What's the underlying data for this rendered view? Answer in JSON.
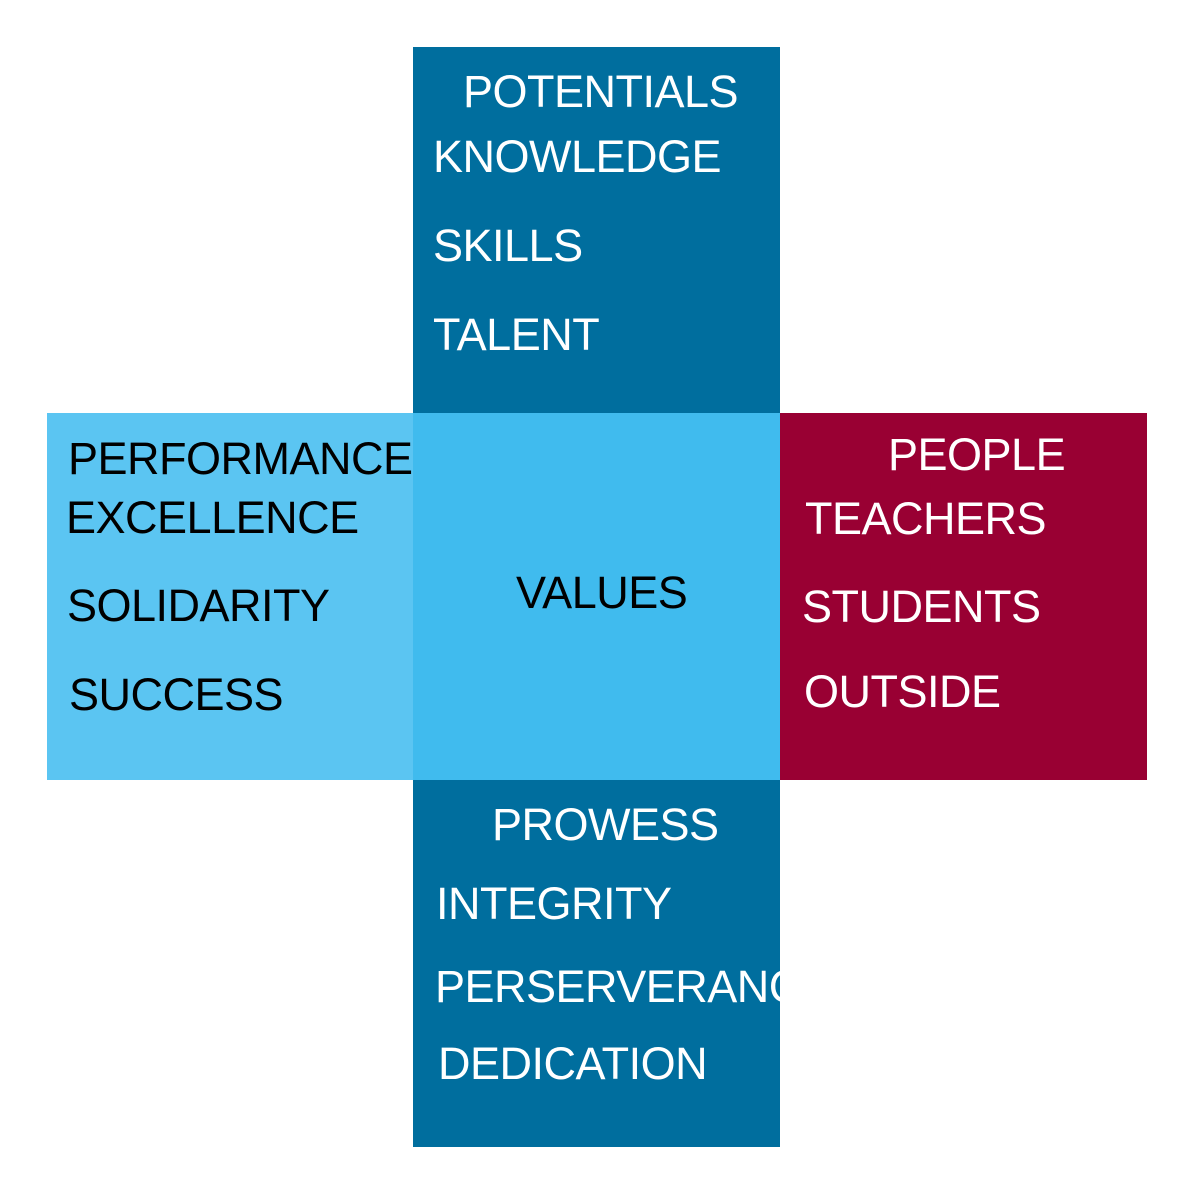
{
  "colors": {
    "top": "#006E9E",
    "bottom": "#006E9E",
    "left": "#5BC5F2",
    "center": "#40BBEE",
    "right": "#990033",
    "light_text": "#ffffff",
    "dark_text": "#000000"
  },
  "top": {
    "title": "POTENTIALS",
    "items": [
      "KNOWLEDGE",
      "SKILLS",
      "TALENT"
    ]
  },
  "left": {
    "title": "PERFORMANCE",
    "items": [
      "EXCELLENCE",
      "SOLIDARITY",
      "SUCCESS"
    ]
  },
  "center": {
    "title": "VALUES"
  },
  "right": {
    "title": "PEOPLE",
    "items": [
      "TEACHERS",
      "STUDENTS",
      "OUTSIDE"
    ]
  },
  "bottom": {
    "title": "PROWESS",
    "items": [
      "INTEGRITY",
      "PERSERVERANCE",
      "DEDICATION"
    ]
  }
}
